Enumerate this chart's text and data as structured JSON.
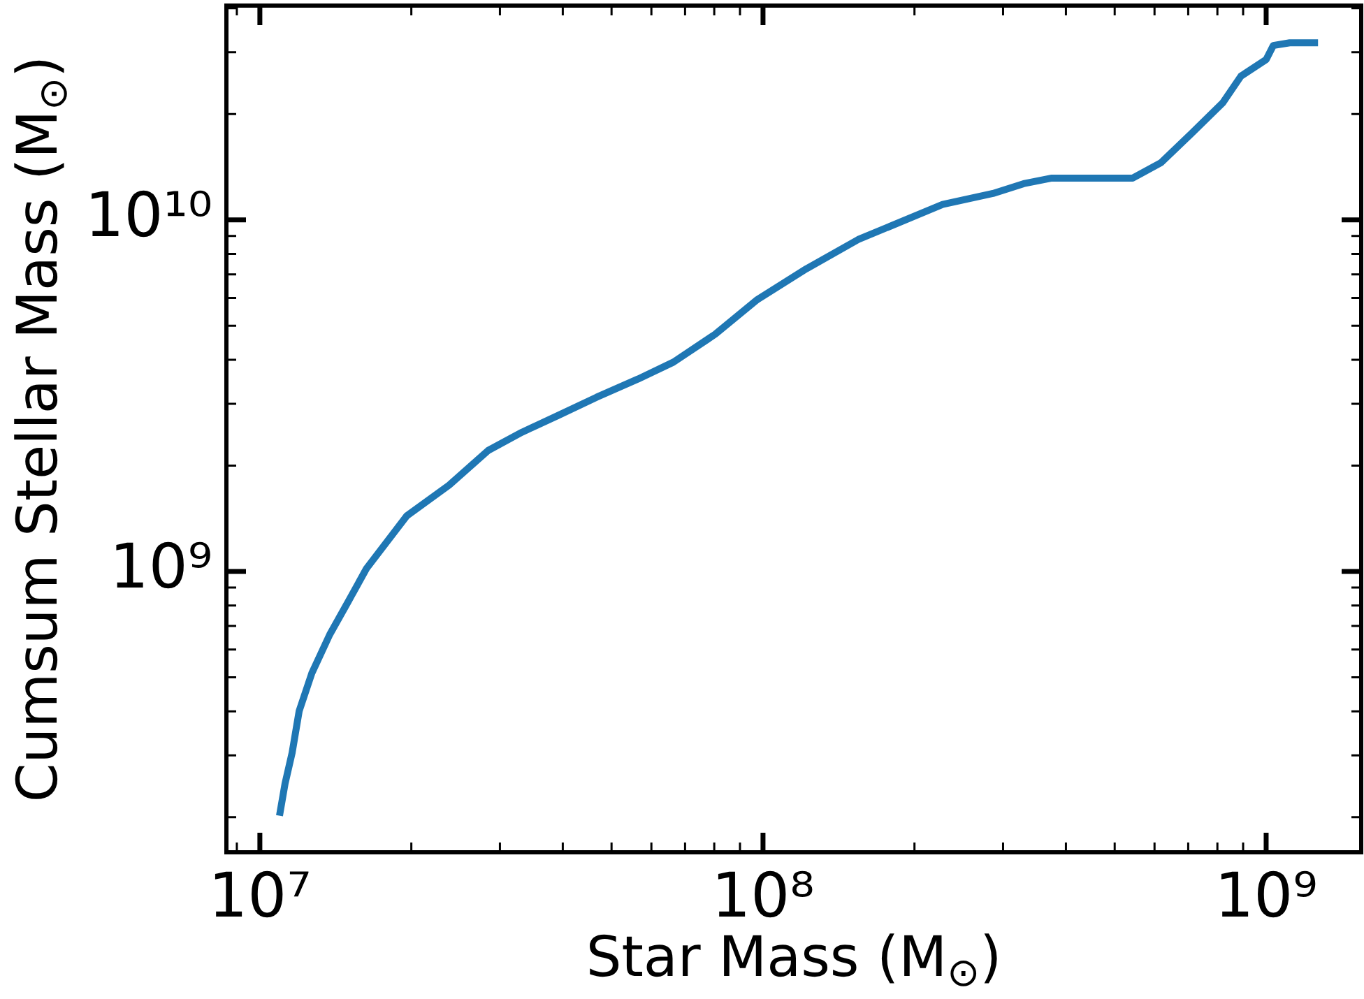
{
  "chart_data": {
    "type": "line",
    "xlabel": "Star Mass (M$_{⊙}$)",
    "ylabel": "Cumsum Stellar Mass (M$_{⊙}$)",
    "log": "xy",
    "xlim": [
      8580000.0,
      1545000000.0
    ],
    "ylim": [
      159000000.0,
      40700000000.0
    ],
    "xticks": [
      {
        "value": 9000000.0,
        "label": null
      },
      {
        "value": 10000000.0,
        "label": "10⁷"
      },
      {
        "value": 20000000.0,
        "label": null
      },
      {
        "value": 30000000.0,
        "label": null
      },
      {
        "value": 40000000.0,
        "label": null
      },
      {
        "value": 50000000.0,
        "label": null
      },
      {
        "value": 60000000.0,
        "label": null
      },
      {
        "value": 70000000.0,
        "label": null
      },
      {
        "value": 80000000.0,
        "label": null
      },
      {
        "value": 90000000.0,
        "label": null
      },
      {
        "value": 100000000.0,
        "label": "10⁸"
      },
      {
        "value": 200000000.0,
        "label": null
      },
      {
        "value": 300000000.0,
        "label": null
      },
      {
        "value": 400000000.0,
        "label": null
      },
      {
        "value": 500000000.0,
        "label": null
      },
      {
        "value": 600000000.0,
        "label": null
      },
      {
        "value": 700000000.0,
        "label": null
      },
      {
        "value": 800000000.0,
        "label": null
      },
      {
        "value": 900000000.0,
        "label": null
      },
      {
        "value": 1000000000.0,
        "label": "10⁹"
      }
    ],
    "yticks": [
      {
        "value": 200000000.0,
        "label": null
      },
      {
        "value": 300000000.0,
        "label": null
      },
      {
        "value": 400000000.0,
        "label": null
      },
      {
        "value": 500000000.0,
        "label": null
      },
      {
        "value": 600000000.0,
        "label": null
      },
      {
        "value": 700000000.0,
        "label": null
      },
      {
        "value": 800000000.0,
        "label": null
      },
      {
        "value": 900000000.0,
        "label": null
      },
      {
        "value": 1000000000.0,
        "label": "10⁹"
      },
      {
        "value": 2000000000.0,
        "label": null
      },
      {
        "value": 3000000000.0,
        "label": null
      },
      {
        "value": 4000000000.0,
        "label": null
      },
      {
        "value": 5000000000.0,
        "label": null
      },
      {
        "value": 6000000000.0,
        "label": null
      },
      {
        "value": 7000000000.0,
        "label": null
      },
      {
        "value": 8000000000.0,
        "label": null
      },
      {
        "value": 9000000000.0,
        "label": null
      },
      {
        "value": 10000000000.0,
        "label": "10¹⁰"
      },
      {
        "value": 20000000000.0,
        "label": null
      },
      {
        "value": 30000000000.0,
        "label": null
      },
      {
        "value": 40000000000.0,
        "label": null
      }
    ],
    "x": [
      10940000.0,
      11220000.0,
      11590000.0,
      11970000.0,
      12680000.0,
      13770000.0,
      14960000.0,
      16290000.0,
      19590000.0,
      23770000.0,
      28440000.0,
      33190000.0,
      39170000.0,
      46670000.0,
      56490000.0,
      66370000.0,
      80350000.0,
      97500000.0,
      121900000.0,
      154500000.0,
      227500000.0,
      286400000.0,
      329600000.0,
      375000000.0,
      543000000.0,
      618000000.0,
      711000000.0,
      820000000.0,
      891000000.0,
      1000000000.0,
      1033000000.0,
      1114000000.0,
      1268000000.0
    ],
    "series": [
      {
        "color": "#1f77b4",
        "values": [
          202000000.0,
          249000000.0,
          305000000.0,
          401000000.0,
          513000000.0,
          662000000.0,
          818000000.0,
          1020000000.0,
          1440000000.0,
          1760000000.0,
          2210000000.0,
          2490000000.0,
          2780000000.0,
          3130000000.0,
          3530000000.0,
          3940000000.0,
          4730000000.0,
          5940000000.0,
          7260000000.0,
          8790000000.0,
          11070000000.0,
          11890000000.0,
          12680000000.0,
          13150000000.0,
          13150000000.0,
          14550000000.0,
          17620000000.0,
          21530000000.0,
          25640000000.0,
          28580000000.0,
          31330000000.0,
          31900000000.0,
          31900000000.0
        ]
      }
    ]
  }
}
